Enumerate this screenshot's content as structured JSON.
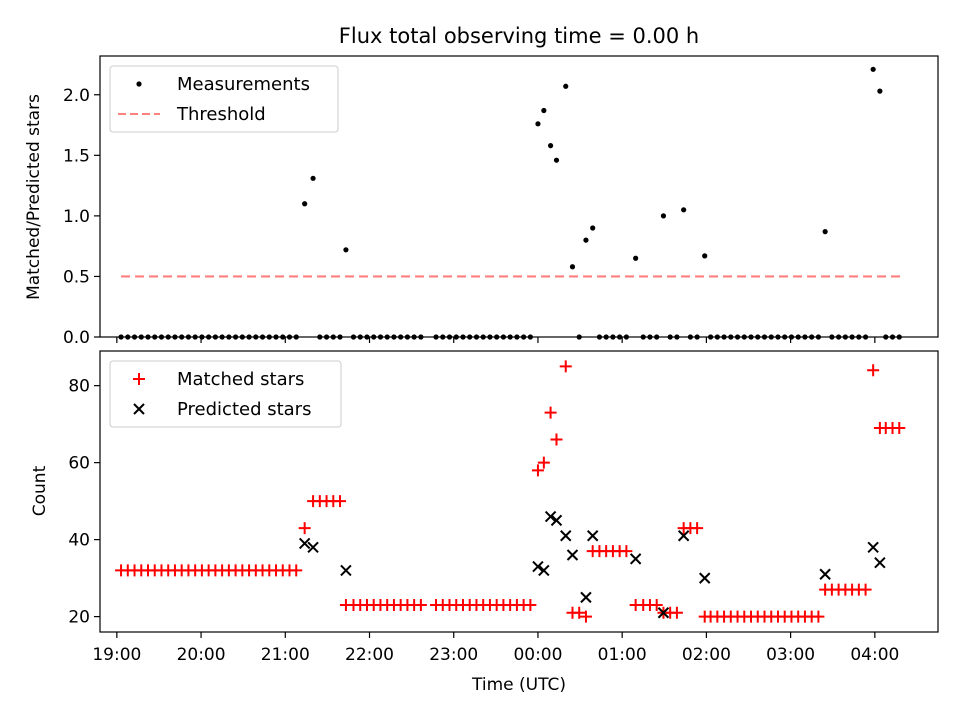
{
  "figure": {
    "title": "Flux total observing time = 0.00 h"
  },
  "chart_data": [
    {
      "type": "scatter",
      "panel": "top",
      "ylabel": "Matched/Predicted stars",
      "xlabel": "",
      "xlim": [
        18.8,
        28.75
      ],
      "ylim": [
        0,
        2.32
      ],
      "yticks": [
        0.0,
        0.5,
        1.0,
        1.5,
        2.0
      ],
      "ytick_labels": [
        "0.0",
        "0.5",
        "1.0",
        "1.5",
        "2.0"
      ],
      "xticks": [
        19,
        20,
        21,
        22,
        23,
        24,
        25,
        26,
        27,
        28
      ],
      "grid": false,
      "legend": {
        "placement": "top-left",
        "entries": [
          "Measurements",
          "Threshold"
        ]
      },
      "series": [
        {
          "name": "Measurements",
          "color": "#000000",
          "marker": "dot",
          "x": [
            19.05,
            19.13,
            19.21,
            19.29,
            19.37,
            19.45,
            19.53,
            19.61,
            19.69,
            19.77,
            19.85,
            19.93,
            20.01,
            20.09,
            20.17,
            20.25,
            20.33,
            20.41,
            20.49,
            20.57,
            20.65,
            20.73,
            20.81,
            20.89,
            20.97,
            21.05,
            21.13,
            21.23,
            21.33,
            21.41,
            21.49,
            21.57,
            21.65,
            21.72,
            21.81,
            21.89,
            21.97,
            22.05,
            22.13,
            22.21,
            22.29,
            22.37,
            22.45,
            22.53,
            22.61,
            22.79,
            22.87,
            22.95,
            23.03,
            23.11,
            23.19,
            23.27,
            23.35,
            23.43,
            23.51,
            23.59,
            23.67,
            23.75,
            23.83,
            23.91,
            24.0,
            24.07,
            24.15,
            24.22,
            24.33,
            24.41,
            24.49,
            24.57,
            24.65,
            24.73,
            24.81,
            24.89,
            24.97,
            25.05,
            25.16,
            25.25,
            25.33,
            25.41,
            25.49,
            25.57,
            25.65,
            25.73,
            25.81,
            25.89,
            25.98,
            26.05,
            26.13,
            26.21,
            26.29,
            26.37,
            26.45,
            26.53,
            26.61,
            26.69,
            26.77,
            26.85,
            26.93,
            27.01,
            27.09,
            27.17,
            27.25,
            27.33,
            27.41,
            27.49,
            27.57,
            27.65,
            27.73,
            27.81,
            27.89,
            27.98,
            28.06,
            28.13,
            28.21,
            28.29
          ],
          "y": [
            0,
            0,
            0,
            0,
            0,
            0,
            0,
            0,
            0,
            0,
            0,
            0,
            0,
            0,
            0,
            0,
            0,
            0,
            0,
            0,
            0,
            0,
            0,
            0,
            0,
            0,
            0,
            1.1,
            1.31,
            0,
            0,
            0,
            0,
            0.72,
            0,
            0,
            0,
            0,
            0,
            0,
            0,
            0,
            0,
            0,
            0,
            0,
            0,
            0,
            0,
            0,
            0,
            0,
            0,
            0,
            0,
            0,
            0,
            0,
            0,
            0,
            1.76,
            1.87,
            1.58,
            1.46,
            2.07,
            0.58,
            0,
            0.8,
            0.9,
            0,
            0,
            0,
            0,
            0,
            0.65,
            0,
            0,
            0,
            1.0,
            0,
            0,
            1.05,
            0,
            0,
            0.67,
            0,
            0,
            0,
            0,
            0,
            0,
            0,
            0,
            0,
            0,
            0,
            0,
            0,
            0,
            0,
            0,
            0,
            0.87,
            0,
            0,
            0,
            0,
            0,
            0,
            2.21,
            2.03,
            0,
            0,
            0
          ]
        },
        {
          "name": "Threshold",
          "color": "#ff7f7f",
          "style": "dashed",
          "x": [
            19.05,
            28.3
          ],
          "y": [
            0.5,
            0.5
          ]
        }
      ]
    },
    {
      "type": "scatter",
      "panel": "bottom",
      "ylabel": "Count",
      "xlabel": "Time (UTC)",
      "xlim": [
        18.8,
        28.75
      ],
      "ylim": [
        16,
        89
      ],
      "yticks": [
        20,
        40,
        60,
        80
      ],
      "ytick_labels": [
        "20",
        "40",
        "60",
        "80"
      ],
      "xticks": [
        19,
        20,
        21,
        22,
        23,
        24,
        25,
        26,
        27,
        28
      ],
      "xtick_labels": [
        "19:00",
        "20:00",
        "21:00",
        "22:00",
        "23:00",
        "00:00",
        "01:00",
        "02:00",
        "03:00",
        "04:00"
      ],
      "grid": false,
      "legend": {
        "placement": "top-left",
        "entries": [
          "Matched stars",
          "Predicted stars"
        ]
      },
      "series": [
        {
          "name": "Matched stars",
          "color": "#ff0000",
          "marker": "plus",
          "x": [
            19.05,
            19.13,
            19.21,
            19.29,
            19.37,
            19.45,
            19.53,
            19.61,
            19.69,
            19.77,
            19.85,
            19.93,
            20.01,
            20.09,
            20.17,
            20.25,
            20.33,
            20.41,
            20.49,
            20.57,
            20.65,
            20.73,
            20.81,
            20.89,
            20.97,
            21.05,
            21.13,
            21.23,
            21.33,
            21.41,
            21.49,
            21.57,
            21.65,
            21.72,
            21.81,
            21.89,
            21.97,
            22.05,
            22.13,
            22.21,
            22.29,
            22.37,
            22.45,
            22.53,
            22.61,
            22.79,
            22.87,
            22.95,
            23.03,
            23.11,
            23.19,
            23.27,
            23.35,
            23.43,
            23.51,
            23.59,
            23.67,
            23.75,
            23.83,
            23.91,
            24.0,
            24.07,
            24.15,
            24.22,
            24.33,
            24.41,
            24.49,
            24.57,
            24.65,
            24.73,
            24.81,
            24.89,
            24.97,
            25.05,
            25.16,
            25.25,
            25.33,
            25.41,
            25.49,
            25.57,
            25.65,
            25.73,
            25.81,
            25.89,
            25.98,
            26.05,
            26.13,
            26.21,
            26.29,
            26.37,
            26.45,
            26.53,
            26.61,
            26.69,
            26.77,
            26.85,
            26.93,
            27.01,
            27.09,
            27.17,
            27.25,
            27.33,
            27.41,
            27.49,
            27.57,
            27.65,
            27.73,
            27.81,
            27.89,
            27.98,
            28.06,
            28.13,
            28.21,
            28.29
          ],
          "y": [
            32,
            32,
            32,
            32,
            32,
            32,
            32,
            32,
            32,
            32,
            32,
            32,
            32,
            32,
            32,
            32,
            32,
            32,
            32,
            32,
            32,
            32,
            32,
            32,
            32,
            32,
            32,
            43,
            50,
            50,
            50,
            50,
            50,
            23,
            23,
            23,
            23,
            23,
            23,
            23,
            23,
            23,
            23,
            23,
            23,
            23,
            23,
            23,
            23,
            23,
            23,
            23,
            23,
            23,
            23,
            23,
            23,
            23,
            23,
            23,
            58,
            60,
            73,
            66,
            85,
            21,
            21,
            20,
            37,
            37,
            37,
            37,
            37,
            37,
            23,
            23,
            23,
            23,
            21,
            21,
            21,
            43,
            43,
            43,
            20,
            20,
            20,
            20,
            20,
            20,
            20,
            20,
            20,
            20,
            20,
            20,
            20,
            20,
            20,
            20,
            20,
            20,
            27,
            27,
            27,
            27,
            27,
            27,
            27,
            84,
            69,
            69,
            69,
            69
          ]
        },
        {
          "name": "Predicted stars",
          "color": "#000000",
          "marker": "x",
          "x": [
            21.23,
            21.33,
            21.72,
            24.0,
            24.07,
            24.15,
            24.22,
            24.33,
            24.41,
            24.57,
            24.65,
            25.16,
            25.49,
            25.73,
            25.98,
            27.41,
            27.98,
            28.06
          ],
          "y": [
            39,
            38,
            32,
            33,
            32,
            46,
            45,
            41,
            36,
            25,
            41,
            35,
            21,
            41,
            30,
            31,
            38,
            34
          ]
        }
      ]
    }
  ]
}
